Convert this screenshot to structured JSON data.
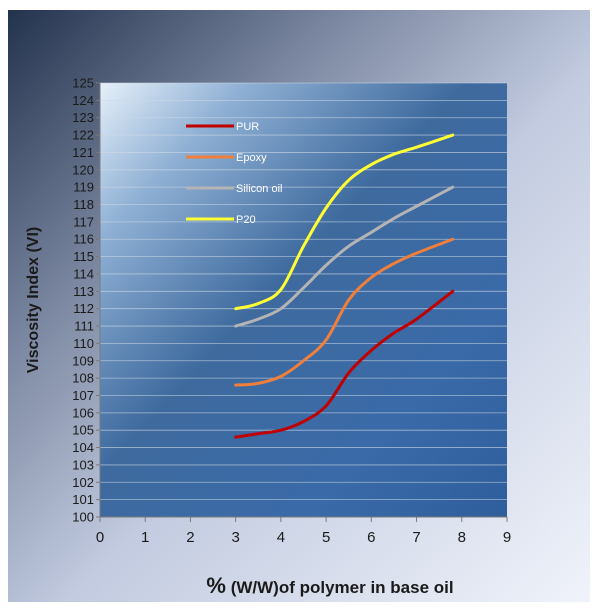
{
  "chart_data": {
    "type": "line",
    "xlabel": {
      "prefix": "%",
      "rest": " (W/W)of polymer in base oil"
    },
    "ylabel": "Viscosity Index (VI)",
    "xlim": [
      0,
      9
    ],
    "ylim": [
      100,
      125
    ],
    "x_ticks": [
      0,
      1,
      2,
      3,
      4,
      5,
      6,
      7,
      8,
      9
    ],
    "y_ticks": [
      100,
      101,
      102,
      103,
      104,
      105,
      106,
      107,
      108,
      109,
      110,
      111,
      112,
      113,
      114,
      115,
      116,
      117,
      118,
      119,
      120,
      121,
      122,
      123,
      124,
      125
    ],
    "grid": {
      "horizontal": true,
      "vertical": false
    },
    "legend": {
      "position": "top-left-inside"
    },
    "series": [
      {
        "name": "PUR",
        "color": "#c00000",
        "points": [
          [
            3.0,
            104.6
          ],
          [
            3.5,
            104.8
          ],
          [
            4.0,
            105.0
          ],
          [
            4.5,
            105.5
          ],
          [
            5.0,
            106.4
          ],
          [
            5.5,
            108.3
          ],
          [
            6.0,
            109.6
          ],
          [
            6.5,
            110.6
          ],
          [
            7.0,
            111.4
          ],
          [
            7.8,
            113.0
          ]
        ]
      },
      {
        "name": "Epoxy",
        "color": "#f07f3c",
        "points": [
          [
            3.0,
            107.6
          ],
          [
            3.5,
            107.7
          ],
          [
            4.0,
            108.1
          ],
          [
            4.5,
            109.0
          ],
          [
            5.0,
            110.2
          ],
          [
            5.5,
            112.5
          ],
          [
            6.0,
            113.8
          ],
          [
            6.5,
            114.6
          ],
          [
            7.0,
            115.2
          ],
          [
            7.8,
            116.0
          ]
        ]
      },
      {
        "name": "Silicon oil",
        "color": "#b4b4b4",
        "points": [
          [
            3.0,
            111.0
          ],
          [
            3.5,
            111.4
          ],
          [
            4.0,
            112.0
          ],
          [
            4.5,
            113.2
          ],
          [
            5.0,
            114.5
          ],
          [
            5.5,
            115.6
          ],
          [
            6.0,
            116.4
          ],
          [
            6.5,
            117.2
          ],
          [
            7.0,
            117.9
          ],
          [
            7.8,
            119.0
          ]
        ]
      },
      {
        "name": "P20",
        "color": "#ffff33",
        "points": [
          [
            3.0,
            112.0
          ],
          [
            3.5,
            112.3
          ],
          [
            4.0,
            113.1
          ],
          [
            4.5,
            115.6
          ],
          [
            5.0,
            117.8
          ],
          [
            5.5,
            119.4
          ],
          [
            6.0,
            120.3
          ],
          [
            6.5,
            120.9
          ],
          [
            7.0,
            121.3
          ],
          [
            7.8,
            122.0
          ]
        ]
      }
    ]
  }
}
